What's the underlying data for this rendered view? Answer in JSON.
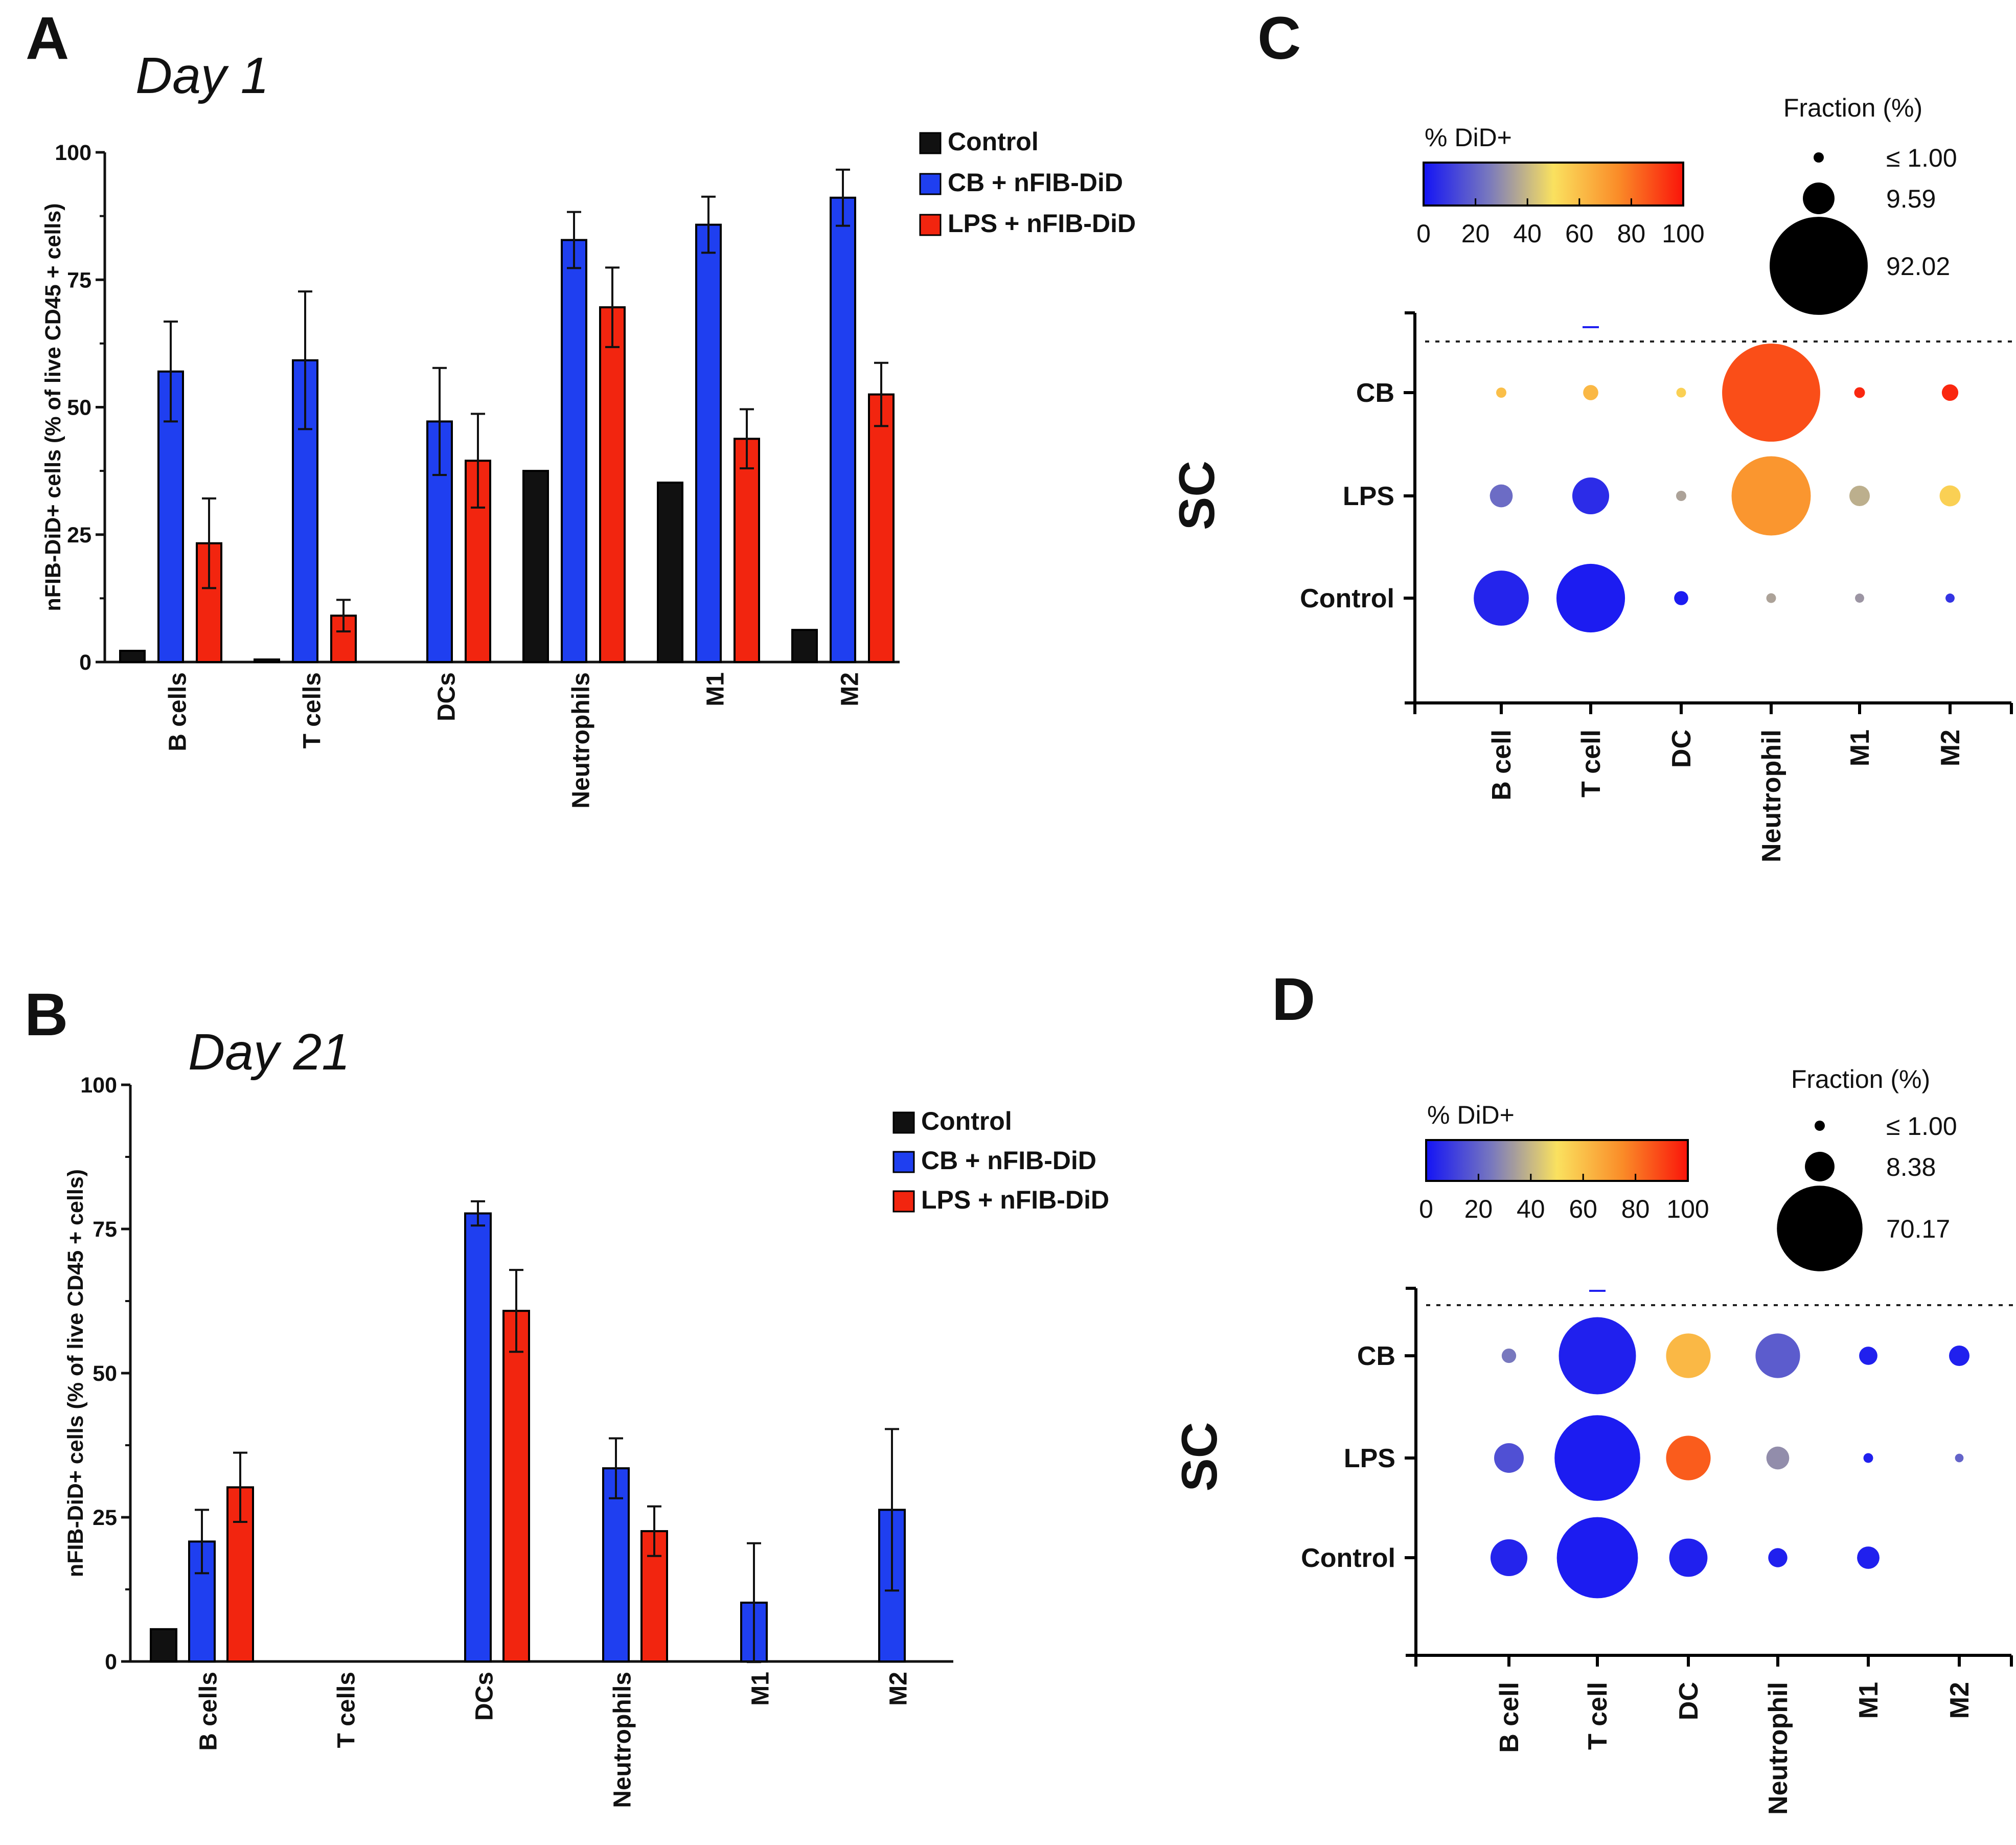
{
  "colors": {
    "control": "#111111",
    "cb": "#1f3ff0",
    "lps": "#f2250f",
    "axis": "#111111"
  },
  "chart_data": [
    {
      "panel": "A",
      "type": "bar",
      "title": "Day 1",
      "ylabel": "nFIB-DiD+ cells (% of live CD45 + cells)",
      "ylim": [
        0,
        100
      ],
      "yticks": [
        "0",
        "25",
        "50",
        "75",
        "100"
      ],
      "categories": [
        "B cells",
        "T cells",
        "DCs",
        "Neutrophils",
        "M1",
        "M2"
      ],
      "legend": [
        "Control",
        "CB + nFIB-DiD",
        "LPS + nFIB-DiD"
      ],
      "series": [
        {
          "name": "Control",
          "values": [
            2.2,
            0.5,
            0,
            37.5,
            35.2,
            6.3
          ],
          "errors": [
            0,
            0,
            0,
            0,
            0,
            0
          ]
        },
        {
          "name": "CB + nFIB-DiD",
          "values": [
            57,
            59.2,
            47.2,
            82.8,
            85.8,
            91.1
          ],
          "errors": [
            9.8,
            13.5,
            10.5,
            5.5,
            5.5,
            5.5
          ]
        },
        {
          "name": "LPS + nFIB-DiD",
          "values": [
            23.3,
            9.1,
            39.5,
            69.6,
            43.8,
            52.5
          ],
          "errors": [
            8.8,
            3.1,
            9.2,
            7.8,
            5.8,
            6.2
          ]
        }
      ]
    },
    {
      "panel": "B",
      "type": "bar",
      "title": "Day 21",
      "ylabel": "nFIB-DiD+ cells (% of live CD45 + cells)",
      "ylim": [
        0,
        100
      ],
      "yticks": [
        "0",
        "25",
        "50",
        "75",
        "100"
      ],
      "categories": [
        "B cells",
        "T cells",
        "DCs",
        "Neutrophils",
        "M1",
        "M2"
      ],
      "legend": [
        "Control",
        "CB + nFIB-DiD",
        "LPS + nFIB-DiD"
      ],
      "series": [
        {
          "name": "Control",
          "values": [
            5.6,
            0,
            0,
            0,
            0,
            0
          ],
          "errors": [
            0,
            0,
            0,
            0,
            0,
            0
          ]
        },
        {
          "name": "CB + nFIB-DiD",
          "values": [
            20.8,
            0,
            77.7,
            33.5,
            10.2,
            26.3
          ],
          "errors": [
            5.5,
            0,
            2.1,
            5.2,
            10.3,
            14
          ]
        },
        {
          "name": "LPS + nFIB-DiD",
          "values": [
            30.2,
            0,
            60.8,
            22.6,
            0,
            0
          ],
          "errors": [
            6,
            0,
            7.1,
            4.3,
            0,
            0
          ]
        }
      ]
    },
    {
      "panel": "C",
      "type": "scatter",
      "subtype": "dot plot",
      "colorbar_label": "% DiD+",
      "colorbar_ticks": [
        "0",
        "20",
        "40",
        "60",
        "80",
        "100"
      ],
      "size_legend_title": "Fraction (%)",
      "size_legend": [
        {
          "label": "≤  1.00",
          "fraction": 1.0
        },
        {
          "label": "9.59",
          "fraction": 9.59
        },
        {
          "label": "92.02",
          "fraction": 92.02
        }
      ],
      "side_label": "SC",
      "columns": [
        "B cell",
        "T cell",
        "DC",
        "Neutrophil",
        "M1",
        "M2"
      ],
      "rows": [
        "CB",
        "LPS",
        "Control"
      ],
      "points": [
        {
          "row": "CB",
          "col": "B cell",
          "pct": 60,
          "fraction": 1.0
        },
        {
          "row": "CB",
          "col": "T cell",
          "pct": 62,
          "fraction": 2.2
        },
        {
          "row": "CB",
          "col": "DC",
          "pct": 55,
          "fraction": 0.9
        },
        {
          "row": "CB",
          "col": "Neutrophil",
          "pct": 88,
          "fraction": 92.02
        },
        {
          "row": "CB",
          "col": "M1",
          "pct": 96,
          "fraction": 1.1
        },
        {
          "row": "CB",
          "col": "M2",
          "pct": 96,
          "fraction": 2.6
        },
        {
          "row": "LPS",
          "col": "B cell",
          "pct": 22,
          "fraction": 5.0
        },
        {
          "row": "LPS",
          "col": "T cell",
          "pct": 6,
          "fraction": 13
        },
        {
          "row": "LPS",
          "col": "DC",
          "pct": 35,
          "fraction": 1.0
        },
        {
          "row": "LPS",
          "col": "Neutrophil",
          "pct": 72,
          "fraction": 60
        },
        {
          "row": "LPS",
          "col": "M1",
          "pct": 38,
          "fraction": 4.0
        },
        {
          "row": "LPS",
          "col": "M2",
          "pct": 55,
          "fraction": 4.2
        },
        {
          "row": "Control",
          "col": "B cell",
          "pct": 4,
          "fraction": 29
        },
        {
          "row": "Control",
          "col": "T cell",
          "pct": 2,
          "fraction": 45
        },
        {
          "row": "Control",
          "col": "DC",
          "pct": 2,
          "fraction": 1.9
        },
        {
          "row": "Control",
          "col": "Neutrophil",
          "pct": 35,
          "fraction": 0.9
        },
        {
          "row": "Control",
          "col": "M1",
          "pct": 32,
          "fraction": 0.8
        },
        {
          "row": "Control",
          "col": "M2",
          "pct": 8,
          "fraction": 0.8
        }
      ]
    },
    {
      "panel": "D",
      "type": "scatter",
      "subtype": "dot plot",
      "colorbar_label": "% DiD+",
      "colorbar_ticks": [
        "0",
        "20",
        "40",
        "60",
        "80",
        "100"
      ],
      "size_legend_title": "Fraction (%)",
      "size_legend": [
        {
          "label": "≤  1.00",
          "fraction": 1.0
        },
        {
          "label": "8.38",
          "fraction": 8.38
        },
        {
          "label": "70.17",
          "fraction": 70.17
        }
      ],
      "side_label": "SC",
      "columns": [
        "B cell",
        "T cell",
        "DC",
        "Neutrophil",
        "M1",
        "M2"
      ],
      "rows": [
        "CB",
        "LPS",
        "Control"
      ],
      "points": [
        {
          "row": "CB",
          "col": "B cell",
          "pct": 25,
          "fraction": 2.0
        },
        {
          "row": "CB",
          "col": "T cell",
          "pct": 3,
          "fraction": 57
        },
        {
          "row": "CB",
          "col": "DC",
          "pct": 62,
          "fraction": 19
        },
        {
          "row": "CB",
          "col": "Neutrophil",
          "pct": 18,
          "fraction": 19
        },
        {
          "row": "CB",
          "col": "M1",
          "pct": 3,
          "fraction": 3.2
        },
        {
          "row": "CB",
          "col": "M2",
          "pct": 3,
          "fraction": 4.0
        },
        {
          "row": "LPS",
          "col": "B cell",
          "pct": 15,
          "fraction": 8.4
        },
        {
          "row": "LPS",
          "col": "T cell",
          "pct": 2,
          "fraction": 70.17
        },
        {
          "row": "LPS",
          "col": "DC",
          "pct": 85,
          "fraction": 19
        },
        {
          "row": "LPS",
          "col": "Neutrophil",
          "pct": 30,
          "fraction": 5.0
        },
        {
          "row": "LPS",
          "col": "M1",
          "pct": 3,
          "fraction": 0.9
        },
        {
          "row": "LPS",
          "col": "M2",
          "pct": 20,
          "fraction": 0.7
        },
        {
          "row": "Control",
          "col": "B cell",
          "pct": 4,
          "fraction": 13
        },
        {
          "row": "Control",
          "col": "T cell",
          "pct": 2,
          "fraction": 63
        },
        {
          "row": "Control",
          "col": "DC",
          "pct": 3,
          "fraction": 14
        },
        {
          "row": "Control",
          "col": "Neutrophil",
          "pct": 3,
          "fraction": 3.5
        },
        {
          "row": "Control",
          "col": "M1",
          "pct": 3,
          "fraction": 4.8
        }
      ]
    }
  ]
}
